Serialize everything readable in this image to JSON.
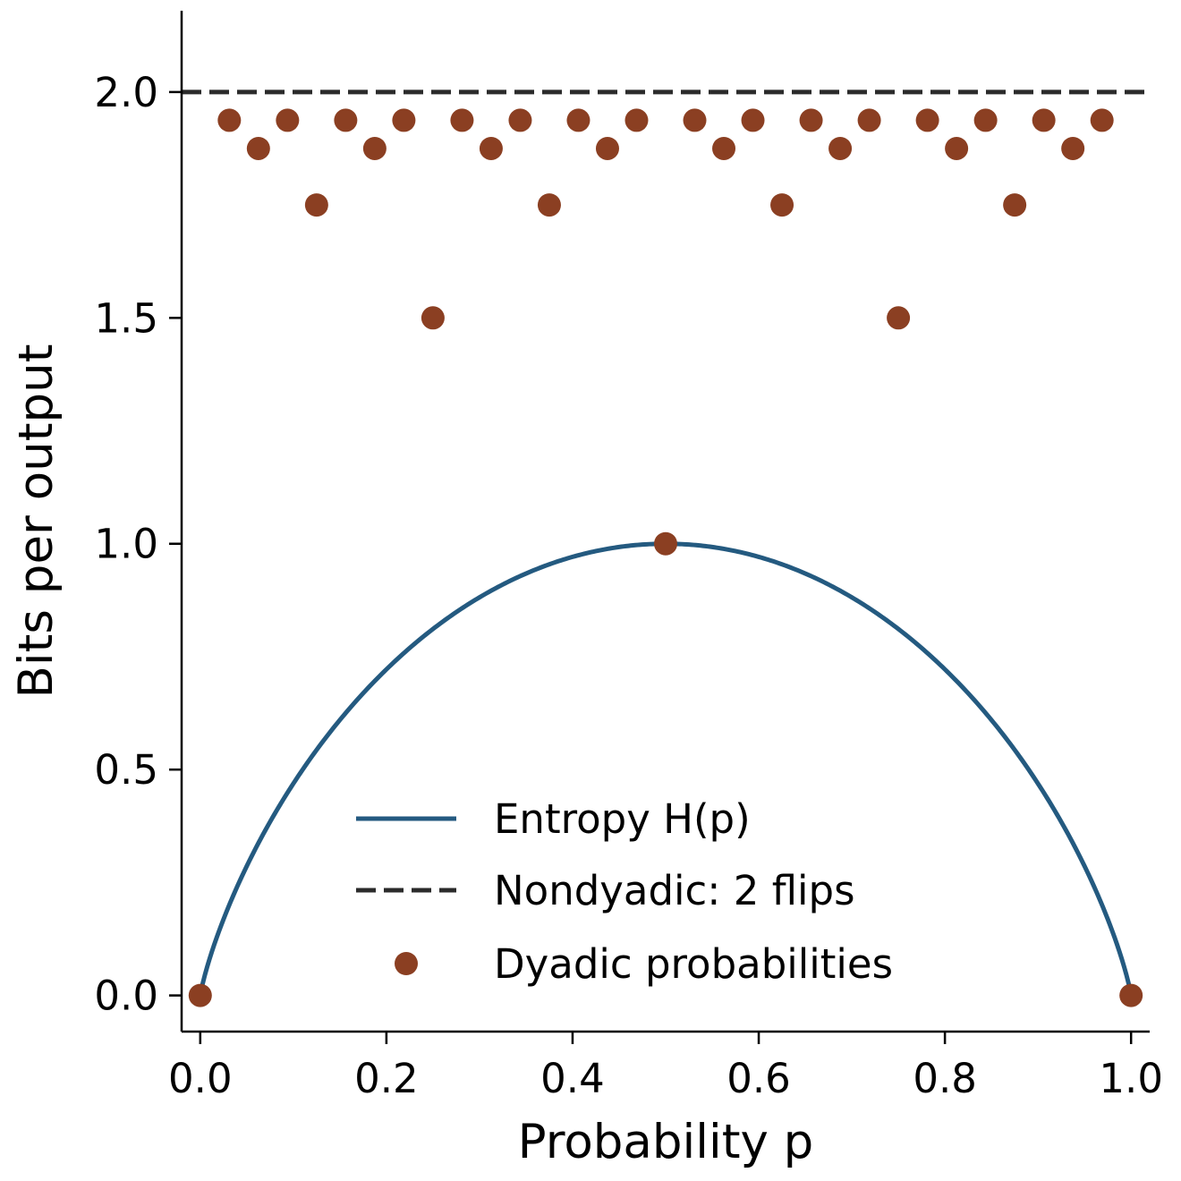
{
  "chart_data": {
    "type": "line",
    "title": "",
    "xlabel": "Probability p",
    "ylabel": "Bits per output",
    "xlim": [
      -0.02,
      1.02
    ],
    "ylim": [
      -0.08,
      2.18
    ],
    "xticks": [
      0.0,
      0.2,
      0.4,
      0.6,
      0.8,
      1.0
    ],
    "xtick_labels": [
      "0.0",
      "0.2",
      "0.4",
      "0.6",
      "0.8",
      "1.0"
    ],
    "yticks": [
      0.0,
      0.5,
      1.0,
      1.5,
      2.0
    ],
    "ytick_labels": [
      "0.0",
      "0.5",
      "1.0",
      "1.5",
      "2.0"
    ],
    "grid": false,
    "legend_position": "bottom-center",
    "series": [
      {
        "name": "Entropy H(p)",
        "kind": "line",
        "style": "solid",
        "color": "#245a80",
        "function": "binary_entropy",
        "x_range": [
          0.0,
          1.0
        ]
      },
      {
        "name": "Nondyadic: 2 flips",
        "kind": "line",
        "style": "dashed",
        "color": "#2b2b2b",
        "x": [
          -0.02,
          1.02
        ],
        "y": [
          2.0,
          2.0
        ]
      },
      {
        "name": "Dyadic probabilities",
        "kind": "scatter",
        "color": "#8b3f22",
        "x": [
          0.0,
          0.03125,
          0.0625,
          0.09375,
          0.125,
          0.15625,
          0.1875,
          0.21875,
          0.25,
          0.28125,
          0.3125,
          0.34375,
          0.375,
          0.40625,
          0.4375,
          0.46875,
          0.5,
          0.53125,
          0.5625,
          0.59375,
          0.625,
          0.65625,
          0.6875,
          0.71875,
          0.75,
          0.78125,
          0.8125,
          0.84375,
          0.875,
          0.90625,
          0.9375,
          0.96875,
          1.0
        ],
        "y": [
          0.0,
          1.9375,
          1.875,
          1.9375,
          1.75,
          1.9375,
          1.875,
          1.9375,
          1.5,
          1.9375,
          1.875,
          1.9375,
          1.75,
          1.9375,
          1.875,
          1.9375,
          1.0,
          1.9375,
          1.875,
          1.9375,
          1.75,
          1.9375,
          1.875,
          1.9375,
          1.5,
          1.9375,
          1.875,
          1.9375,
          1.75,
          1.9375,
          1.875,
          1.9375,
          0.0
        ]
      }
    ]
  }
}
